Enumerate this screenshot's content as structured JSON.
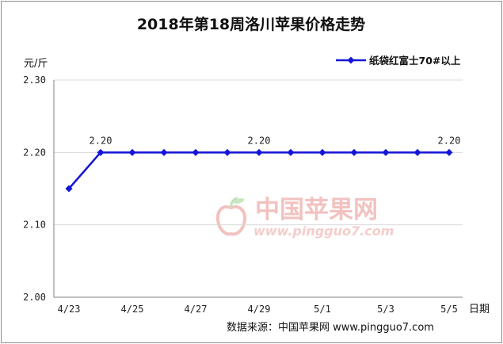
{
  "chart_data": {
    "type": "line",
    "title": "2018年第18周洛川苹果价格走势",
    "ylabel": "元/斤",
    "xlabel": "日期",
    "ylim": [
      2.0,
      2.3
    ],
    "yticks": [
      "2.30",
      "2.20",
      "2.10",
      "2.00"
    ],
    "yticks_values": [
      2.3,
      2.2,
      2.1,
      2.0
    ],
    "categories": [
      "4/23",
      "4/24",
      "4/25",
      "4/26",
      "4/27",
      "4/28",
      "4/29",
      "4/30",
      "5/1",
      "5/2",
      "5/3",
      "5/4",
      "5/5"
    ],
    "xtick_labels": [
      "4/23",
      "4/25",
      "4/27",
      "4/29",
      "5/1",
      "5/3",
      "5/5"
    ],
    "grid": "horizontal",
    "legend_position": "top-right",
    "series": [
      {
        "name": "纸袋红富士70#以上",
        "color": "#1515d6",
        "values": [
          2.15,
          2.2,
          2.2,
          2.2,
          2.2,
          2.2,
          2.2,
          2.2,
          2.2,
          2.2,
          2.2,
          2.2,
          2.2
        ]
      }
    ],
    "annotations": [
      {
        "category": "4/24",
        "text": "2.20"
      },
      {
        "category": "4/29",
        "text": "2.20"
      },
      {
        "category": "5/5",
        "text": "2.20"
      }
    ]
  },
  "source": "数据来源：中国苹果网 www.pingguo7.com",
  "watermark": {
    "name": "中国苹果网",
    "url": "www.pingguo7.com"
  },
  "colors": {
    "line": "#1515d6",
    "grid": "#d9d9d9",
    "axis": "#7f7f7f",
    "watermark": "#f2c2c0"
  }
}
